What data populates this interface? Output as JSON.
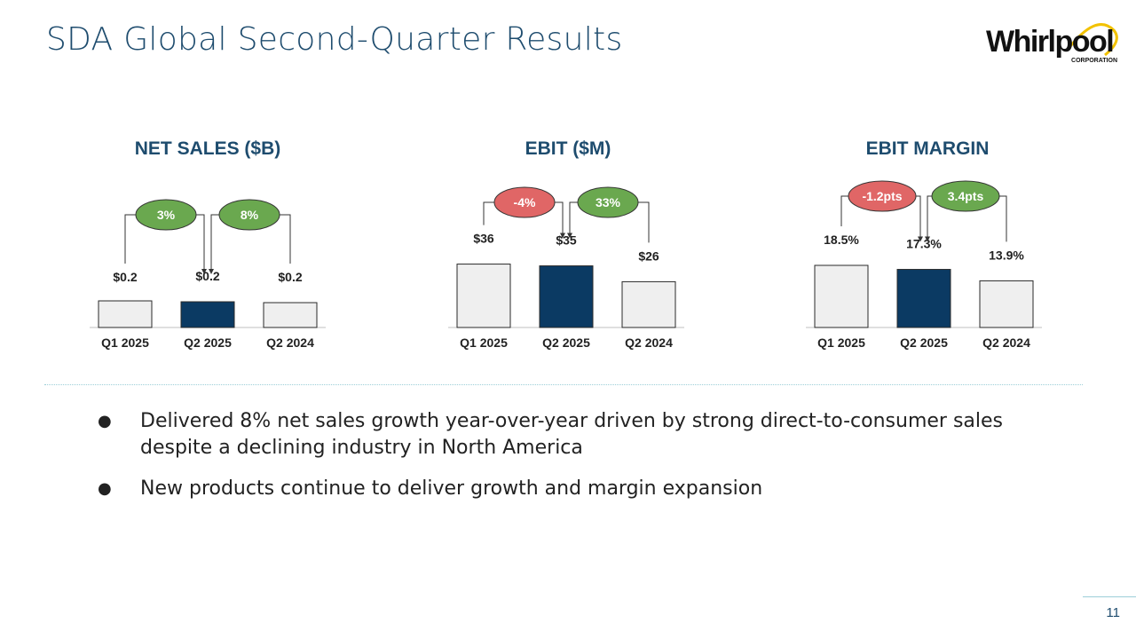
{
  "slide": {
    "title": "SDA Global Second-Quarter Results",
    "page_number": "11",
    "logo": {
      "text": "Whirlpool",
      "subtext": "CORPORATION",
      "accent_color": "#f2c200"
    }
  },
  "colors": {
    "title": "#1e4c6e",
    "bar_light": "#efefef",
    "bar_dark": "#0b3a63",
    "bar_stroke": "#2a2a2a",
    "pill_green": "#6aa84f",
    "pill_red": "#e06666"
  },
  "chart_data": [
    {
      "type": "bar",
      "title": "NET SALES ($B)",
      "categories": [
        "Q1 2025",
        "Q2 2025",
        "Q2 2024"
      ],
      "values": [
        0.2,
        0.2,
        0.2
      ],
      "value_labels": [
        "$0.2",
        "$0.2",
        "$0.2"
      ],
      "highlight_index": 1,
      "changes": [
        {
          "label": "3%",
          "from": 0,
          "to": 1,
          "tone": "positive"
        },
        {
          "label": "8%",
          "from": 2,
          "to": 1,
          "tone": "positive"
        }
      ]
    },
    {
      "type": "bar",
      "title": "EBIT ($M)",
      "categories": [
        "Q1 2025",
        "Q2 2025",
        "Q2 2024"
      ],
      "values": [
        36,
        35,
        26
      ],
      "value_labels": [
        "$36",
        "$35",
        "$26"
      ],
      "highlight_index": 1,
      "changes": [
        {
          "label": "-4%",
          "from": 0,
          "to": 1,
          "tone": "negative"
        },
        {
          "label": "33%",
          "from": 2,
          "to": 1,
          "tone": "positive"
        }
      ]
    },
    {
      "type": "bar",
      "title": "EBIT MARGIN",
      "categories": [
        "Q1 2025",
        "Q2 2025",
        "Q2 2024"
      ],
      "values": [
        18.5,
        17.3,
        13.9
      ],
      "value_labels": [
        "18.5%",
        "17.3%",
        "13.9%"
      ],
      "highlight_index": 1,
      "changes": [
        {
          "label": "-1.2pts",
          "from": 0,
          "to": 1,
          "tone": "negative"
        },
        {
          "label": "3.4pts",
          "from": 2,
          "to": 1,
          "tone": "positive"
        }
      ]
    }
  ],
  "bullets": [
    "Delivered 8% net sales growth year-over-year driven by strong direct-to-consumer sales despite a declining industry in North America",
    "New products continue to deliver growth and margin expansion"
  ]
}
